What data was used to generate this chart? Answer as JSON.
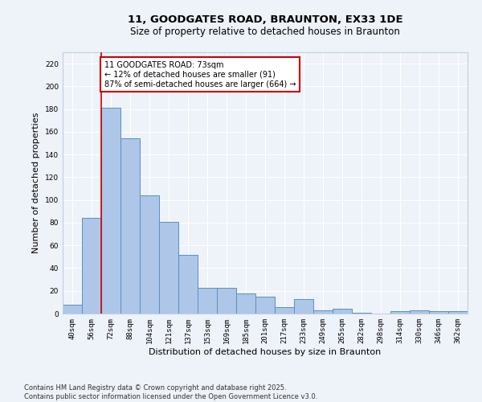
{
  "title": "11, GOODGATES ROAD, BRAUNTON, EX33 1DE",
  "subtitle": "Size of property relative to detached houses in Braunton",
  "xlabel": "Distribution of detached houses by size in Braunton",
  "ylabel": "Number of detached properties",
  "categories": [
    "40sqm",
    "56sqm",
    "72sqm",
    "88sqm",
    "104sqm",
    "121sqm",
    "137sqm",
    "153sqm",
    "169sqm",
    "185sqm",
    "201sqm",
    "217sqm",
    "233sqm",
    "249sqm",
    "265sqm",
    "282sqm",
    "298sqm",
    "314sqm",
    "330sqm",
    "346sqm",
    "362sqm"
  ],
  "values": [
    8,
    84,
    181,
    154,
    104,
    81,
    52,
    23,
    23,
    18,
    15,
    6,
    13,
    3,
    4,
    1,
    0,
    2,
    3,
    2,
    2
  ],
  "bar_color": "#aec6e8",
  "bar_edge_color": "#5a8fc2",
  "background_color": "#eef2f9",
  "grid_color": "#ffffff",
  "vline_x_index": 2,
  "vline_color": "#cc0000",
  "annotation_text": "11 GOODGATES ROAD: 73sqm\n← 12% of detached houses are smaller (91)\n87% of semi-detached houses are larger (664) →",
  "annotation_box_edgecolor": "#cc0000",
  "ylim": [
    0,
    230
  ],
  "yticks": [
    0,
    20,
    40,
    60,
    80,
    100,
    120,
    140,
    160,
    180,
    200,
    220
  ],
  "footer": "Contains HM Land Registry data © Crown copyright and database right 2025.\nContains public sector information licensed under the Open Government Licence v3.0.",
  "title_fontsize": 9.5,
  "subtitle_fontsize": 8.5,
  "tick_fontsize": 6.5,
  "label_fontsize": 8,
  "annotation_fontsize": 7,
  "footer_fontsize": 6
}
